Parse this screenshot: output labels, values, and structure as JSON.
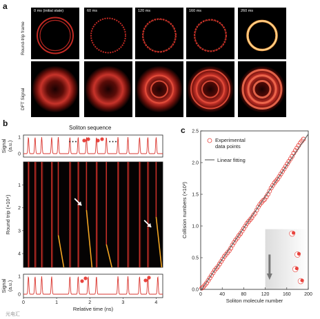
{
  "panel_a": {
    "letter": "a",
    "row_labels": [
      "Round-trip frame",
      "DFT Signal"
    ],
    "frames": [
      {
        "label": "0 ms (initial state)"
      },
      {
        "label": "60 ms"
      },
      {
        "label": "120 ms"
      },
      {
        "label": "160 ms"
      },
      {
        "label": "260 ms"
      }
    ]
  },
  "panel_b": {
    "letter": "b",
    "top_title": "Soliton sequence",
    "signal_label": "Signal",
    "signal_unit": "(a.u.)",
    "middle_ylabel": "Round trip (×10⁴)",
    "xlabel": "Relative time (ns)",
    "ellipsis": "• • •"
  },
  "panel_c": {
    "letter": "c",
    "legend": {
      "points": "Experimental data points",
      "line": "Linear fitting"
    }
  },
  "watermark": "光电汇",
  "colors": {
    "accent": "#e8433d",
    "trace": "#d9332c",
    "orange": "#f5a623",
    "gray": "#777777"
  },
  "chart_data": [
    {
      "id": "b-top",
      "type": "line",
      "ylabel": "Signal",
      "yunit": "(a.u.)",
      "xlim": [
        0,
        4.2
      ],
      "ylim": [
        0,
        1
      ],
      "yticks": [
        0,
        1
      ],
      "peaks": [
        0.15,
        0.35,
        0.55,
        0.85,
        1.05,
        1.4,
        1.65,
        1.9,
        2.2,
        2.5,
        2.85,
        3.15,
        3.5,
        3.75,
        4.0
      ]
    },
    {
      "id": "b-middle",
      "type": "heatmap",
      "ylabel": "Round trip (×10⁴)",
      "xlim": [
        0,
        4.2
      ],
      "ylim": [
        0,
        4.6
      ],
      "yticks": [
        1,
        2,
        3,
        4
      ],
      "traces": [
        {
          "x": 0.15,
          "orange": false,
          "shift_from": null
        },
        {
          "x": 0.35,
          "orange": false,
          "shift_from": null
        },
        {
          "x": 0.55,
          "orange": false,
          "shift_from": null
        },
        {
          "x": 0.85,
          "orange": false,
          "shift_from": null
        },
        {
          "x": 1.05,
          "orange": true,
          "shift_from": 3.2
        },
        {
          "x": 1.4,
          "orange": false,
          "shift_from": null
        },
        {
          "x": 1.65,
          "orange": false,
          "shift_from": null
        },
        {
          "x": 1.9,
          "orange": true,
          "shift_from": 2.1
        },
        {
          "x": 2.2,
          "orange": false,
          "shift_from": null
        },
        {
          "x": 2.5,
          "orange": true,
          "shift_from": 3.6
        },
        {
          "x": 2.85,
          "orange": false,
          "shift_from": null
        },
        {
          "x": 3.15,
          "orange": false,
          "shift_from": null
        },
        {
          "x": 3.5,
          "orange": false,
          "shift_from": null
        },
        {
          "x": 3.75,
          "orange": false,
          "shift_from": null
        },
        {
          "x": 4.0,
          "orange": true,
          "shift_from": 2.4
        }
      ],
      "arrows": [
        {
          "x": 1.75,
          "y": 1.9
        },
        {
          "x": 3.85,
          "y": 2.85
        }
      ]
    },
    {
      "id": "b-bottom",
      "type": "line",
      "ylabel": "Signal",
      "yunit": "(a.u.)",
      "xlabel": "Relative time (ns)",
      "xlim": [
        0,
        4.2
      ],
      "xticks": [
        0,
        1,
        2,
        3,
        4
      ],
      "ylim": [
        0,
        1
      ],
      "yticks": [
        0,
        1
      ],
      "peaks": [
        0.15,
        0.35,
        0.55,
        0.85,
        1.4,
        1.65,
        1.95,
        2.2,
        2.85,
        3.15,
        3.5,
        3.75,
        4.05
      ]
    },
    {
      "id": "c",
      "type": "scatter",
      "xlabel": "Soliton molecule number",
      "ylabel": "Collision numbers (×10³)",
      "xlim": [
        0,
        200
      ],
      "ylim": [
        0,
        2.5
      ],
      "xticks": [
        0,
        40,
        80,
        120,
        160,
        200
      ],
      "yticks": [
        0.0,
        0.5,
        1.0,
        1.5,
        2.0,
        2.5
      ],
      "fit": {
        "x": [
          0,
          200
        ],
        "y": [
          -0.02,
          2.45
        ]
      },
      "points": [
        {
          "x": 2,
          "y": 0.02
        },
        {
          "x": 5,
          "y": 0.04
        },
        {
          "x": 8,
          "y": 0.07
        },
        {
          "x": 11,
          "y": 0.1
        },
        {
          "x": 14,
          "y": 0.14
        },
        {
          "x": 17,
          "y": 0.18
        },
        {
          "x": 20,
          "y": 0.22
        },
        {
          "x": 23,
          "y": 0.26
        },
        {
          "x": 26,
          "y": 0.3
        },
        {
          "x": 29,
          "y": 0.33
        },
        {
          "x": 32,
          "y": 0.36
        },
        {
          "x": 35,
          "y": 0.4
        },
        {
          "x": 38,
          "y": 0.44
        },
        {
          "x": 41,
          "y": 0.48
        },
        {
          "x": 44,
          "y": 0.52
        },
        {
          "x": 47,
          "y": 0.55
        },
        {
          "x": 50,
          "y": 0.58
        },
        {
          "x": 53,
          "y": 0.61
        },
        {
          "x": 56,
          "y": 0.65
        },
        {
          "x": 59,
          "y": 0.7
        },
        {
          "x": 62,
          "y": 0.74
        },
        {
          "x": 65,
          "y": 0.78
        },
        {
          "x": 68,
          "y": 0.81
        },
        {
          "x": 71,
          "y": 0.85
        },
        {
          "x": 74,
          "y": 0.88
        },
        {
          "x": 77,
          "y": 0.92
        },
        {
          "x": 80,
          "y": 0.96
        },
        {
          "x": 83,
          "y": 1.0
        },
        {
          "x": 86,
          "y": 1.04
        },
        {
          "x": 89,
          "y": 1.07
        },
        {
          "x": 92,
          "y": 1.1
        },
        {
          "x": 95,
          "y": 1.13
        },
        {
          "x": 98,
          "y": 1.17
        },
        {
          "x": 101,
          "y": 1.2
        },
        {
          "x": 104,
          "y": 1.25
        },
        {
          "x": 107,
          "y": 1.3
        },
        {
          "x": 110,
          "y": 1.34
        },
        {
          "x": 113,
          "y": 1.37
        },
        {
          "x": 116,
          "y": 1.4
        },
        {
          "x": 119,
          "y": 1.42
        },
        {
          "x": 122,
          "y": 1.46
        },
        {
          "x": 125,
          "y": 1.5
        },
        {
          "x": 128,
          "y": 1.55
        },
        {
          "x": 131,
          "y": 1.6
        },
        {
          "x": 134,
          "y": 1.64
        },
        {
          "x": 137,
          "y": 1.68
        },
        {
          "x": 140,
          "y": 1.71
        },
        {
          "x": 143,
          "y": 1.74
        },
        {
          "x": 146,
          "y": 1.78
        },
        {
          "x": 149,
          "y": 1.82
        },
        {
          "x": 152,
          "y": 1.86
        },
        {
          "x": 155,
          "y": 1.9
        },
        {
          "x": 158,
          "y": 1.94
        },
        {
          "x": 161,
          "y": 1.98
        },
        {
          "x": 164,
          "y": 2.02
        },
        {
          "x": 167,
          "y": 2.06
        },
        {
          "x": 170,
          "y": 2.1
        },
        {
          "x": 173,
          "y": 2.15
        },
        {
          "x": 176,
          "y": 2.19
        },
        {
          "x": 179,
          "y": 2.23
        },
        {
          "x": 182,
          "y": 2.27
        },
        {
          "x": 185,
          "y": 2.31
        },
        {
          "x": 188,
          "y": 2.34
        },
        {
          "x": 191,
          "y": 2.37
        }
      ]
    }
  ]
}
